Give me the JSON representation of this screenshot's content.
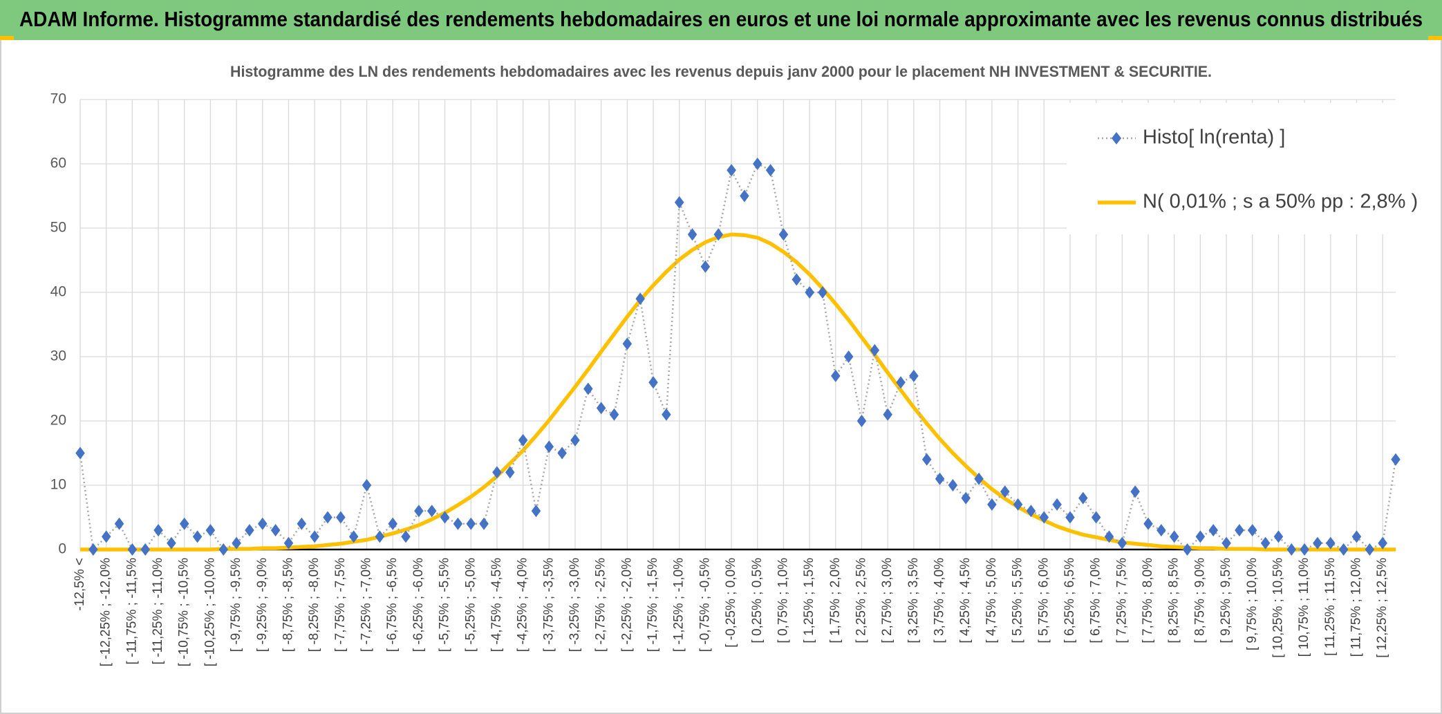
{
  "chart_data": {
    "type": "line",
    "title": "ADAM Informe. Histogramme standardisé des rendements hebdomadaires en euros et une loi normale approximante avec les revenus connus distribués",
    "subtitle": "Histogramme des LN des rendements hebdomadaires avec les revenus depuis janv 2000 pour le placement NH INVESTMENT & SECURITIE.",
    "categories": [
      "-12,5% <",
      null,
      "[ -12,25% ; -12,0%",
      null,
      "[ -11,75% ; -11,5%",
      null,
      "[ -11,25% ; -11,0%",
      null,
      "[ -10,75% ; -10,5%",
      null,
      "[ -10,25% ; -10,0%",
      null,
      "[ -9,75% ; -9,5%",
      null,
      "[ -9,25% ; -9,0%",
      null,
      "[ -8,75% ; -8,5%",
      null,
      "[ -8,25% ; -8,0%",
      null,
      "[ -7,75% ; -7,5%",
      null,
      "[ -7,25% ; -7,0%",
      null,
      "[ -6,75% ; -6,5%",
      null,
      "[ -6,25% ; -6,0%",
      null,
      "[ -5,75% ; -5,5%",
      null,
      "[ -5,25% ; -5,0%",
      null,
      "[ -4,75% ; -4,5%",
      null,
      "[ -4,25% ; -4,0%",
      null,
      "[ -3,75% ; -3,5%",
      null,
      "[ -3,25% ; -3,0%",
      null,
      "[ -2,75% ; -2,5%",
      null,
      "[ -2,25% ; -2,0%",
      null,
      "[ -1,75% ; -1,5%",
      null,
      "[ -1,25% ; -1,0%",
      null,
      "[ -0,75% ; -0,5%",
      null,
      "[ -0,25% ; 0,0%",
      null,
      "[ 0,25% ; 0,5%",
      null,
      "[ 0,75% ; 1,0%",
      null,
      "[ 1,25% ; 1,5%",
      null,
      "[ 1,75% ; 2,0%",
      null,
      "[ 2,25% ; 2,5%",
      null,
      "[ 2,75% ; 3,0%",
      null,
      "[ 3,25% ; 3,5%",
      null,
      "[ 3,75% ; 4,0%",
      null,
      "[ 4,25% ; 4,5%",
      null,
      "[ 4,75% ; 5,0%",
      null,
      "[ 5,25% ; 5,5%",
      null,
      "[ 5,75% ; 6,0%",
      null,
      "[ 6,25% ; 6,5%",
      null,
      "[ 6,75% ; 7,0%",
      null,
      "[ 7,25% ; 7,5%",
      null,
      "[ 7,75% ; 8,0%",
      null,
      "[ 8,25% ; 8,5%",
      null,
      "[ 8,75% ; 9,0%",
      null,
      "[ 9,25% ; 9,5%",
      null,
      "[ 9,75% ; 10,0%",
      null,
      "[ 10,25% ; 10,5%",
      null,
      "[ 10,75% ; 11,0%",
      null,
      "[ 11,25% ; 11,5%",
      null,
      "[ 11,75% ; 12,0%",
      null,
      "[ 12,25% ; 12,5%",
      null
    ],
    "series": [
      {
        "name": "Histo[ ln(renta) ]",
        "color": "#4472c4",
        "line_color": "#a6a6a6",
        "values": [
          15,
          0,
          2,
          4,
          0,
          0,
          3,
          1,
          4,
          2,
          3,
          0,
          1,
          3,
          4,
          3,
          1,
          4,
          2,
          5,
          5,
          2,
          10,
          2,
          4,
          2,
          6,
          6,
          5,
          4,
          4,
          4,
          12,
          12,
          17,
          6,
          16,
          15,
          17,
          25,
          22,
          21,
          32,
          39,
          26,
          21,
          54,
          49,
          44,
          49,
          59,
          55,
          60,
          59,
          49,
          42,
          40,
          40,
          27,
          30,
          20,
          31,
          21,
          26,
          27,
          14,
          11,
          10,
          8,
          11,
          7,
          9,
          7,
          6,
          5,
          7,
          5,
          8,
          5,
          2,
          1,
          9,
          4,
          3,
          2,
          0,
          2,
          3,
          1,
          3,
          3,
          1,
          2,
          0,
          0,
          1,
          1,
          0,
          2,
          0,
          1,
          14
        ]
      },
      {
        "name": "N( 0,01% ; s a 50% pp : 2,8% )",
        "color": "#ffc000",
        "values": [
          0,
          0,
          0,
          0,
          0,
          0,
          0,
          0,
          0,
          0,
          0,
          0.1,
          0.1,
          0.1,
          0.2,
          0.2,
          0.3,
          0.4,
          0.5,
          0.7,
          0.9,
          1.2,
          1.5,
          2.0,
          2.5,
          3.1,
          3.8,
          4.7,
          5.7,
          6.9,
          8.2,
          9.7,
          11.4,
          13.4,
          15.4,
          17.7,
          20.1,
          22.7,
          25.3,
          28.0,
          30.8,
          33.5,
          36.2,
          38.8,
          41.1,
          43.2,
          45.1,
          46.6,
          47.8,
          48.6,
          49.0,
          48.9,
          48.5,
          47.6,
          46.3,
          44.7,
          42.8,
          40.6,
          38.2,
          35.7,
          33.0,
          30.3,
          27.5,
          24.8,
          22.1,
          19.6,
          17.2,
          15.0,
          13.0,
          11.1,
          9.4,
          7.9,
          6.6,
          5.5,
          4.5,
          3.6,
          2.9,
          2.3,
          1.9,
          1.5,
          1.1,
          0.9,
          0.7,
          0.5,
          0.4,
          0.3,
          0.2,
          0.2,
          0.1,
          0.1,
          0.1,
          0,
          0,
          0,
          0,
          0,
          0,
          0,
          0,
          0,
          0,
          0
        ]
      }
    ],
    "ylim": [
      0,
      70
    ],
    "yticks": [
      0,
      10,
      20,
      30,
      40,
      50,
      60,
      70
    ],
    "grid": true,
    "legend": "top-right"
  }
}
